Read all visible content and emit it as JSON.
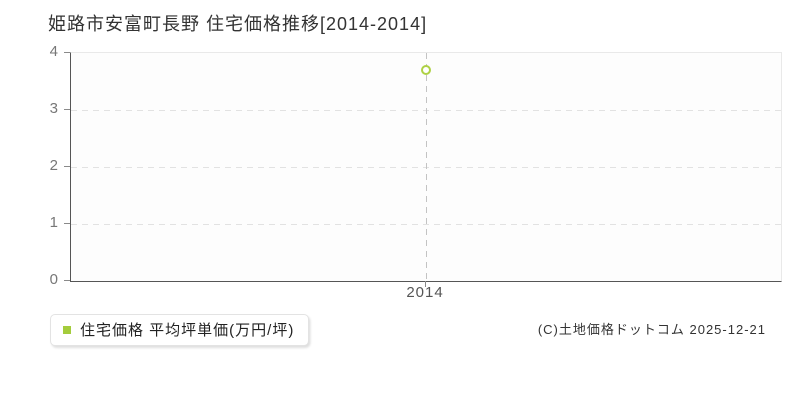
{
  "title": "姫路市安富町長野 住宅価格推移[2014-2014]",
  "legend": {
    "label": "住宅価格 平均坪単価(万円/坪)",
    "marker_color": "#a4cc3c"
  },
  "copyright": "(C)土地価格ドットコム 2025-12-21",
  "colors": {
    "point_stroke": "#aed145",
    "point_fill": "#ffffff",
    "axis": "#555555",
    "gridline": "#e2e2e2",
    "marker_line": "#c3c3c3",
    "title_text": "#333333",
    "tick_text": "#777777"
  },
  "chart_data": {
    "type": "scatter",
    "title": "姫路市安富町長野 住宅価格推移[2014-2014]",
    "x": [
      2014
    ],
    "x_tick_labels": [
      "2014"
    ],
    "series": [
      {
        "name": "住宅価格 平均坪単価(万円/坪)",
        "values": [
          3.7
        ]
      }
    ],
    "xlabel": "",
    "ylabel": "",
    "ylim": [
      0,
      4
    ],
    "y_ticks": [
      0,
      1,
      2,
      3,
      4
    ],
    "y_tick_labels_top_down": [
      "4",
      "3",
      "2",
      "1",
      "0"
    ],
    "grid": true,
    "grid_style": "dashed",
    "point_style": "hollow-circle",
    "legend_position": "bottom-left"
  }
}
